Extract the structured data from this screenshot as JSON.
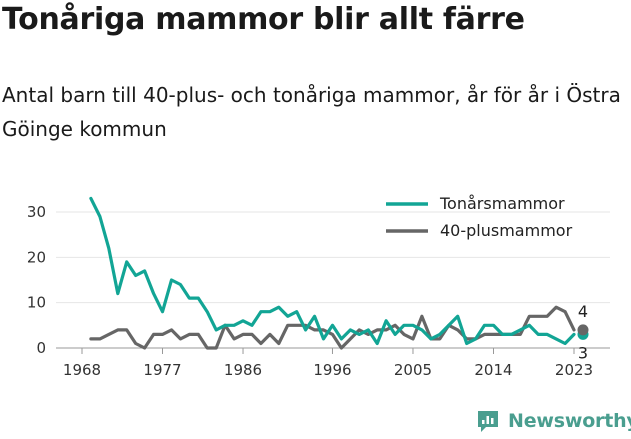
{
  "title": "Tonåriga mammor blir allt färre",
  "subtitle": "Antal barn till 40-plus- och tonåriga mammor, år för år i Östra Göinge kommun",
  "brand": "Newsworthy",
  "chart_data": {
    "type": "line",
    "x": [
      1968,
      1969,
      1970,
      1971,
      1972,
      1973,
      1974,
      1975,
      1976,
      1977,
      1978,
      1979,
      1980,
      1981,
      1982,
      1983,
      1984,
      1985,
      1986,
      1987,
      1988,
      1989,
      1990,
      1991,
      1992,
      1993,
      1994,
      1995,
      1996,
      1997,
      1998,
      1999,
      2000,
      2001,
      2002,
      2003,
      2004,
      2005,
      2006,
      2007,
      2008,
      2009,
      2010,
      2011,
      2012,
      2013,
      2014,
      2015,
      2016,
      2017,
      2018,
      2019,
      2020,
      2021,
      2022,
      2023
    ],
    "series": [
      {
        "name": "Tonårsmammor",
        "color": "#12a595",
        "values": [
          null,
          33,
          29,
          22,
          12,
          19,
          16,
          17,
          12,
          8,
          15,
          14,
          11,
          11,
          8,
          4,
          5,
          5,
          6,
          5,
          8,
          8,
          9,
          7,
          8,
          4,
          7,
          2,
          5,
          2,
          4,
          3,
          4,
          1,
          6,
          3,
          5,
          5,
          4,
          2,
          3,
          5,
          7,
          1,
          2,
          5,
          5,
          3,
          3,
          4,
          5,
          3,
          3,
          2,
          1,
          3
        ]
      },
      {
        "name": "40-plusmammor",
        "color": "#666666",
        "values": [
          null,
          2,
          2,
          3,
          4,
          4,
          1,
          0,
          3,
          3,
          4,
          2,
          3,
          3,
          0,
          0,
          5,
          2,
          3,
          3,
          1,
          3,
          1,
          5,
          5,
          5,
          4,
          4,
          3,
          0,
          2,
          4,
          3,
          4,
          4,
          5,
          3,
          2,
          7,
          2,
          2,
          5,
          4,
          2,
          2,
          3,
          3,
          3,
          3,
          3,
          7,
          7,
          7,
          9,
          8,
          4
        ]
      }
    ],
    "end_labels": {
      "40-plusmammor": "4",
      "Tonårsmammor": "3"
    },
    "x_ticks": [
      "1968",
      "1977",
      "1986",
      "1996",
      "2005",
      "2014",
      "2023"
    ],
    "y_ticks": [
      "0",
      "10",
      "20",
      "30"
    ],
    "ylim": [
      0,
      34
    ],
    "grid": "horizontal",
    "legend_position": "top-right"
  }
}
